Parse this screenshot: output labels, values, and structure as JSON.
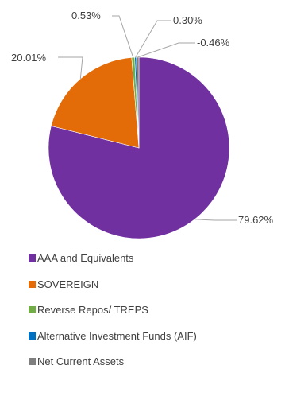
{
  "chart_data": {
    "type": "pie",
    "title": "",
    "slices": [
      {
        "name": "AAA and Equivalents",
        "value": 79.62,
        "label": "79.62%",
        "color": "#7030A0"
      },
      {
        "name": "SOVEREIGN",
        "value": 20.01,
        "label": "20.01%",
        "color": "#E36C09"
      },
      {
        "name": "Reverse Repos/ TREPS",
        "value": 0.53,
        "label": "0.53%",
        "color": "#70AD47"
      },
      {
        "name": "Alternative Investment Funds (AIF)",
        "value": 0.3,
        "label": "0.30%",
        "color": "#0070C0"
      },
      {
        "name": "Net Current Assets",
        "value": -0.46,
        "label": "-0.46%",
        "color": "#7F7F7F"
      }
    ],
    "legend_position": "bottom",
    "leader_line_color": "#A6A6A6"
  }
}
